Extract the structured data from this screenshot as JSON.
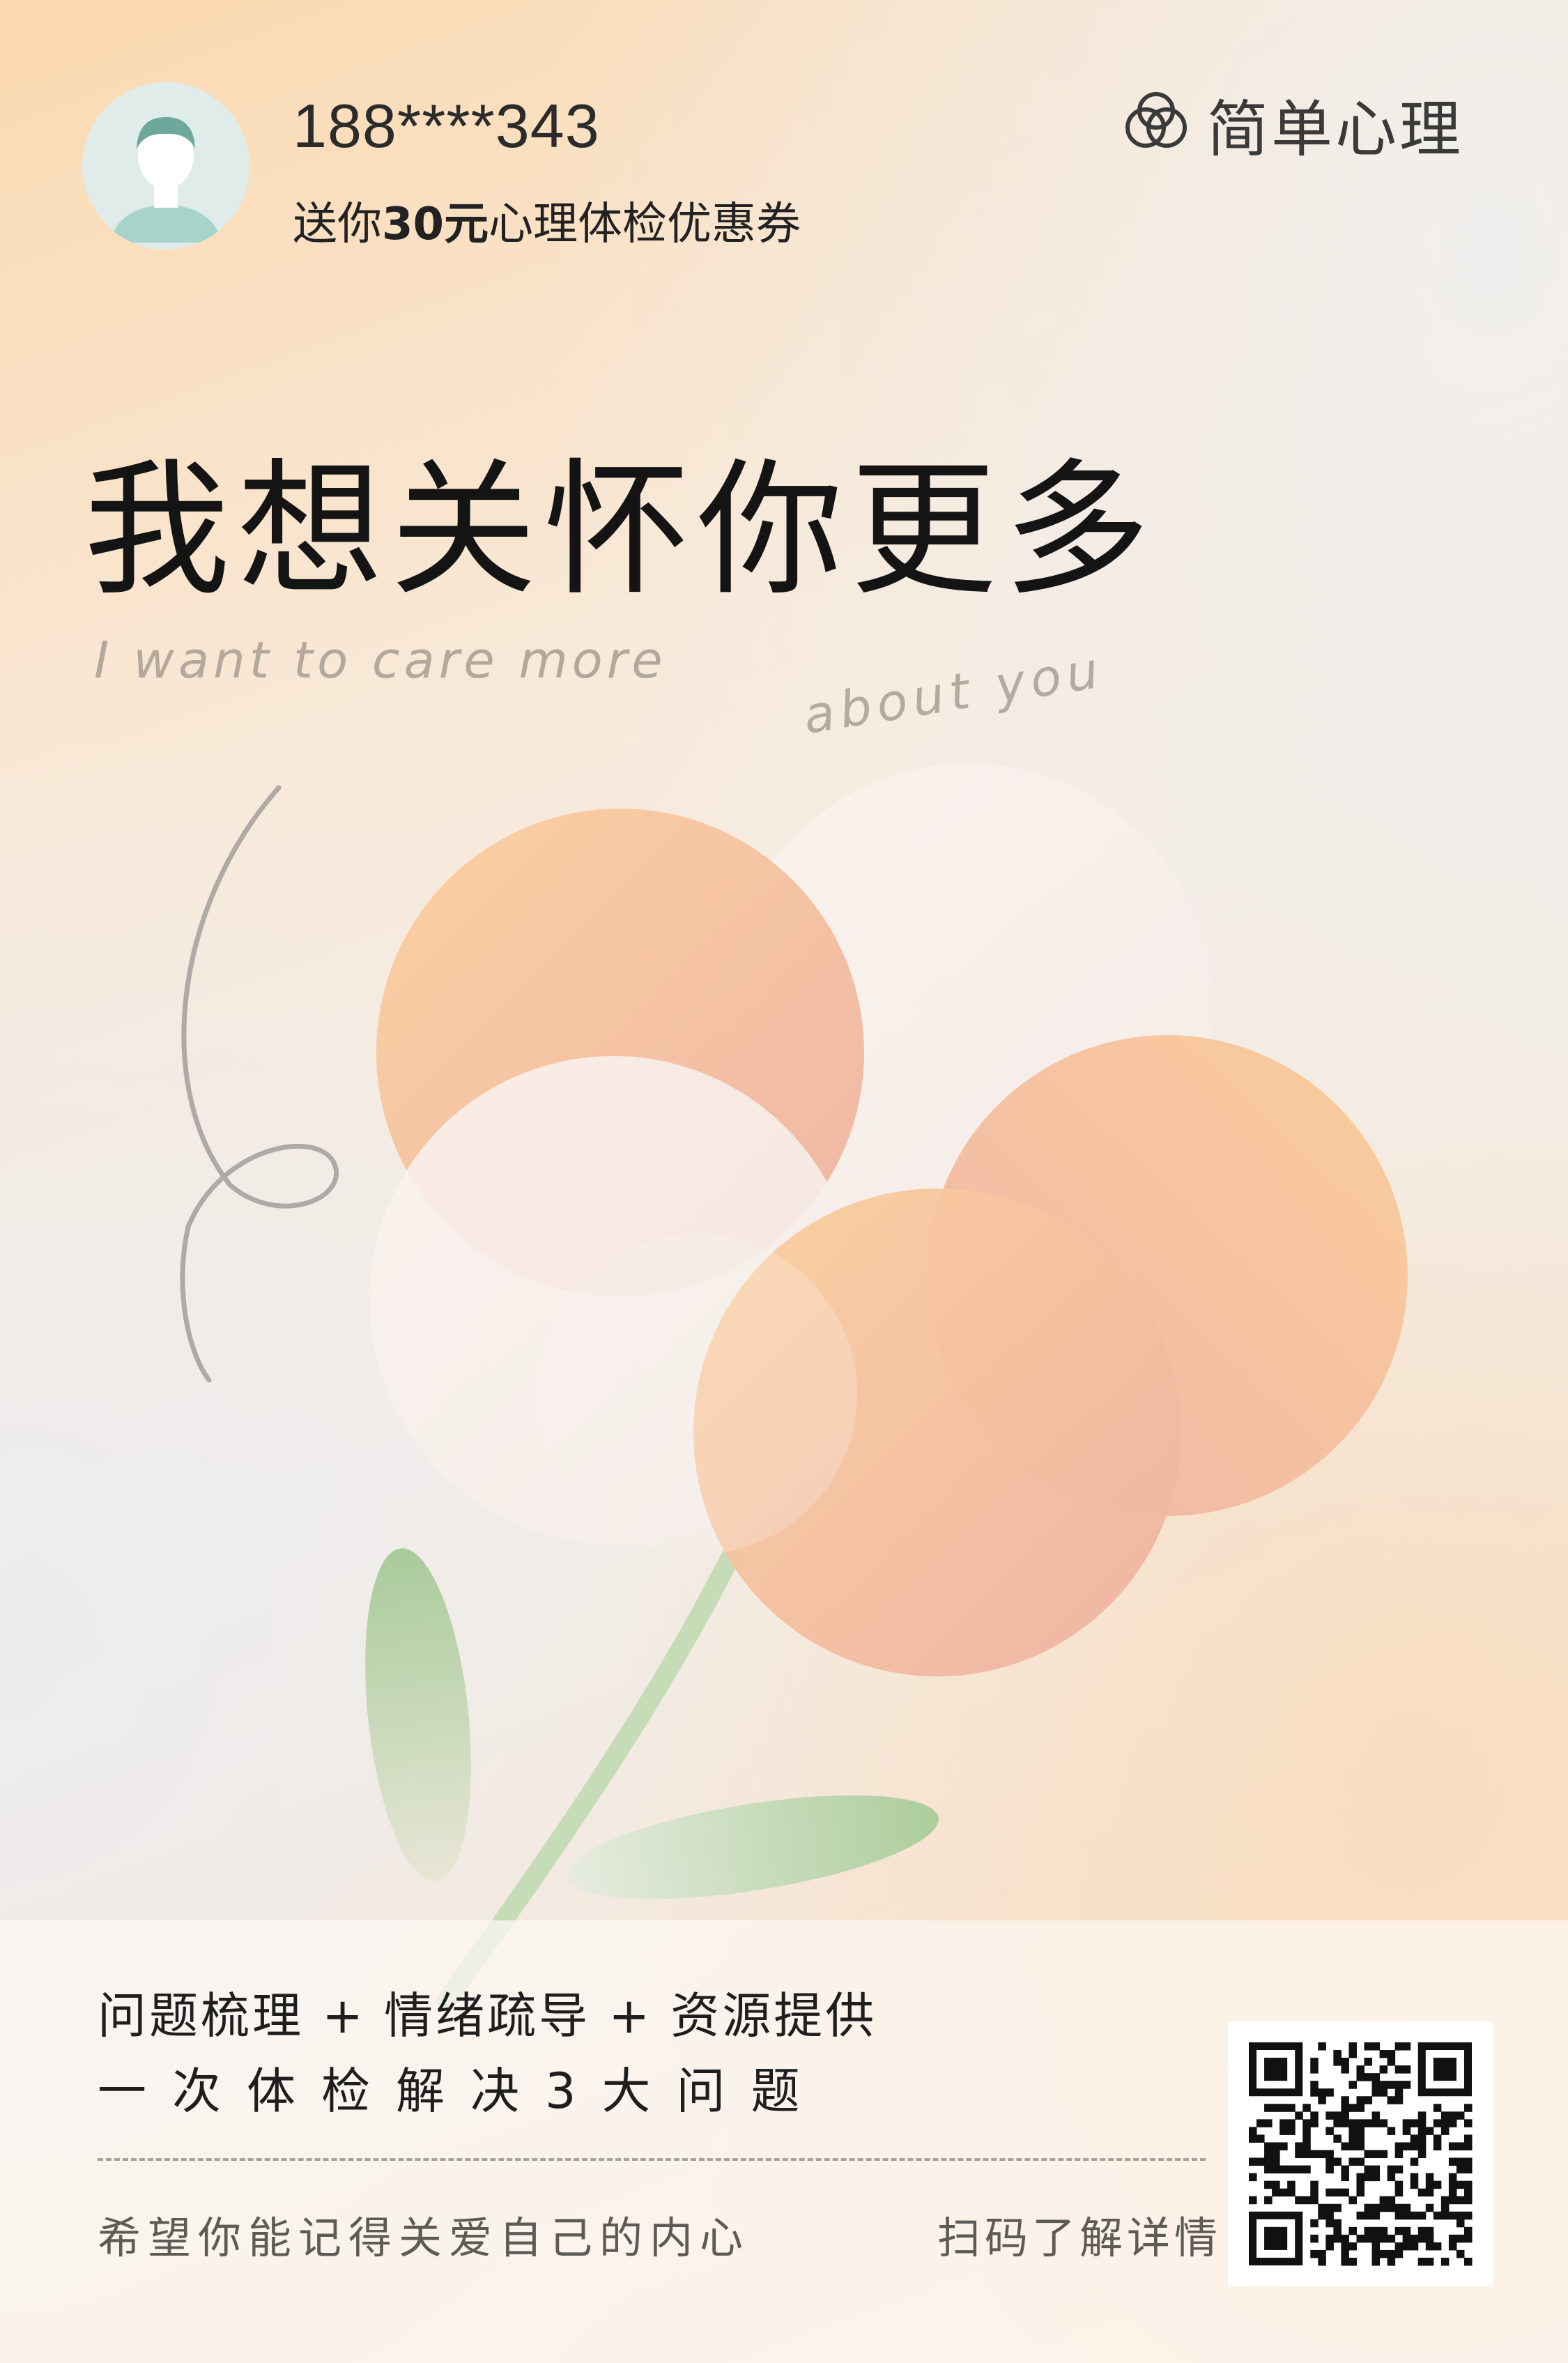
{
  "user": {
    "phone": "188****343",
    "coupon_prefix": "送你",
    "coupon_amount": "30元",
    "coupon_suffix": "心理体检优惠券"
  },
  "brand": {
    "name": "简单心理",
    "logo_icon": "overlapping-circles-logo-icon"
  },
  "headline": "我想关怀你更多",
  "english": {
    "line1": "I want to care more",
    "line2": "about you"
  },
  "services": {
    "line1": "问题梳理 + 情绪疏导 + 资源提供",
    "line2": "一次体检解决3大问题"
  },
  "footer": {
    "left": "希望你能记得关爱自己的内心",
    "right": "扫码了解详情"
  },
  "colors": {
    "peach": "#f8c89a",
    "white_circle": "#f7f2ef",
    "leaf_green": "#a9cc9a",
    "text_dark": "#1e1e1e"
  }
}
